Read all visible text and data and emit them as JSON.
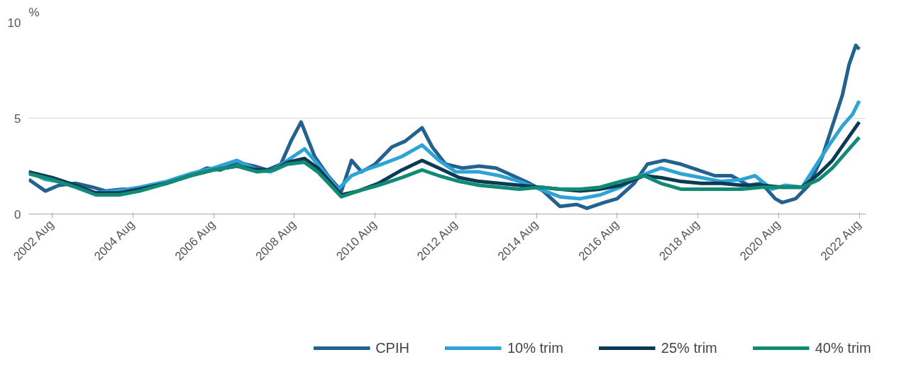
{
  "chart_data": {
    "type": "line",
    "ylabel": "%",
    "xlim": [
      "2002-01",
      "2022-10"
    ],
    "ylim": [
      0,
      10
    ],
    "yticks": [
      0,
      5,
      10
    ],
    "xticks": [
      {
        "value": "2002-08",
        "label": "2002 Aug"
      },
      {
        "value": "2004-08",
        "label": "2004 Aug"
      },
      {
        "value": "2006-08",
        "label": "2006 Aug"
      },
      {
        "value": "2008-08",
        "label": "2008 Aug"
      },
      {
        "value": "2010-08",
        "label": "2010 Aug"
      },
      {
        "value": "2012-08",
        "label": "2012 Aug"
      },
      {
        "value": "2014-08",
        "label": "2014 Aug"
      },
      {
        "value": "2016-08",
        "label": "2016 Aug"
      },
      {
        "value": "2018-08",
        "label": "2018 Aug"
      },
      {
        "value": "2020-08",
        "label": "2020 Aug"
      },
      {
        "value": "2022-08",
        "label": "2022 Aug"
      }
    ],
    "grid": "y",
    "legend": "bottom",
    "line_style": "solid",
    "marker": "none",
    "series": [
      {
        "name": "CPIH",
        "color": "#23628f",
        "x": [
          "2002-01",
          "2002-06",
          "2002-10",
          "2003-03",
          "2003-08",
          "2003-12",
          "2004-05",
          "2004-10",
          "2005-03",
          "2005-08",
          "2006-01",
          "2006-06",
          "2006-10",
          "2007-03",
          "2007-08",
          "2007-12",
          "2008-04",
          "2008-07",
          "2008-10",
          "2009-02",
          "2009-06",
          "2009-10",
          "2010-01",
          "2010-04",
          "2010-08",
          "2011-01",
          "2011-05",
          "2011-10",
          "2012-01",
          "2012-05",
          "2012-10",
          "2013-03",
          "2013-08",
          "2014-01",
          "2014-06",
          "2014-10",
          "2015-03",
          "2015-08",
          "2015-11",
          "2016-04",
          "2016-08",
          "2017-01",
          "2017-05",
          "2017-10",
          "2018-03",
          "2018-08",
          "2019-01",
          "2019-06",
          "2019-11",
          "2020-03",
          "2020-07",
          "2020-09",
          "2021-01",
          "2021-05",
          "2021-09",
          "2021-12",
          "2022-03",
          "2022-05",
          "2022-07",
          "2022-08"
        ],
        "values": [
          1.8,
          1.2,
          1.5,
          1.6,
          1.4,
          1.2,
          1.3,
          1.3,
          1.5,
          1.8,
          2.0,
          2.4,
          2.3,
          2.7,
          2.5,
          2.3,
          2.6,
          3.8,
          4.8,
          3.0,
          2.0,
          1.2,
          2.8,
          2.2,
          2.6,
          3.5,
          3.8,
          4.5,
          3.5,
          2.6,
          2.4,
          2.5,
          2.4,
          2.0,
          1.6,
          1.2,
          0.4,
          0.5,
          0.3,
          0.6,
          0.8,
          1.6,
          2.6,
          2.8,
          2.6,
          2.3,
          2.0,
          2.0,
          1.5,
          1.6,
          0.8,
          0.6,
          0.8,
          1.5,
          3.0,
          4.6,
          6.2,
          7.8,
          8.8,
          8.6
        ]
      },
      {
        "name": "10% trim",
        "color": "#2ea3d6",
        "x": [
          "2002-01",
          "2002-06",
          "2003-01",
          "2003-08",
          "2004-03",
          "2004-10",
          "2005-06",
          "2006-01",
          "2006-08",
          "2007-03",
          "2007-09",
          "2008-01",
          "2008-06",
          "2008-11",
          "2009-03",
          "2009-09",
          "2010-01",
          "2010-05",
          "2010-10",
          "2011-04",
          "2011-10",
          "2012-03",
          "2012-08",
          "2013-03",
          "2013-09",
          "2014-03",
          "2014-09",
          "2015-03",
          "2015-09",
          "2016-03",
          "2016-09",
          "2017-03",
          "2017-09",
          "2018-03",
          "2018-09",
          "2019-03",
          "2019-09",
          "2020-01",
          "2020-06",
          "2020-10",
          "2021-03",
          "2021-07",
          "2021-11",
          "2022-03",
          "2022-06",
          "2022-08"
        ],
        "values": [
          2.2,
          1.8,
          1.6,
          1.1,
          1.2,
          1.4,
          1.7,
          2.1,
          2.4,
          2.8,
          2.3,
          2.2,
          2.8,
          3.4,
          2.6,
          1.3,
          2.0,
          2.3,
          2.6,
          3.0,
          3.6,
          2.8,
          2.2,
          2.2,
          2.0,
          1.7,
          1.3,
          0.9,
          0.8,
          1.0,
          1.4,
          2.0,
          2.4,
          2.1,
          1.9,
          1.7,
          1.8,
          2.0,
          1.3,
          1.5,
          1.4,
          2.5,
          3.6,
          4.6,
          5.2,
          5.9
        ]
      },
      {
        "name": "25% trim",
        "color": "#0b3a55",
        "x": [
          "2002-01",
          "2002-08",
          "2003-03",
          "2003-09",
          "2004-04",
          "2004-10",
          "2005-06",
          "2006-01",
          "2006-08",
          "2007-03",
          "2007-09",
          "2008-02",
          "2008-06",
          "2008-11",
          "2009-03",
          "2009-10",
          "2010-03",
          "2010-09",
          "2011-04",
          "2011-10",
          "2012-03",
          "2012-09",
          "2013-03",
          "2013-09",
          "2014-03",
          "2014-09",
          "2015-03",
          "2015-09",
          "2016-03",
          "2016-09",
          "2017-04",
          "2017-09",
          "2018-03",
          "2018-09",
          "2019-03",
          "2019-09",
          "2020-03",
          "2020-09",
          "2021-03",
          "2021-08",
          "2021-12",
          "2022-04",
          "2022-08"
        ],
        "values": [
          2.2,
          1.9,
          1.5,
          1.1,
          1.1,
          1.3,
          1.6,
          2.0,
          2.3,
          2.5,
          2.3,
          2.3,
          2.7,
          2.9,
          2.4,
          1.0,
          1.2,
          1.6,
          2.3,
          2.8,
          2.4,
          1.9,
          1.7,
          1.6,
          1.5,
          1.4,
          1.3,
          1.2,
          1.3,
          1.5,
          2.0,
          1.9,
          1.7,
          1.6,
          1.6,
          1.5,
          1.5,
          1.4,
          1.4,
          2.1,
          2.8,
          3.8,
          4.8
        ]
      },
      {
        "name": "40% trim",
        "color": "#138a74",
        "x": [
          "2002-01",
          "2002-08",
          "2003-03",
          "2003-09",
          "2004-04",
          "2004-10",
          "2005-06",
          "2006-01",
          "2006-08",
          "2007-03",
          "2007-09",
          "2008-02",
          "2008-06",
          "2008-11",
          "2009-03",
          "2009-10",
          "2010-03",
          "2010-09",
          "2011-04",
          "2011-10",
          "2012-03",
          "2012-09",
          "2013-03",
          "2013-09",
          "2014-03",
          "2014-09",
          "2015-03",
          "2015-09",
          "2016-03",
          "2016-09",
          "2017-04",
          "2017-09",
          "2018-03",
          "2018-09",
          "2019-03",
          "2019-09",
          "2020-03",
          "2020-09",
          "2021-03",
          "2021-08",
          "2021-12",
          "2022-04",
          "2022-08"
        ],
        "values": [
          2.1,
          1.8,
          1.4,
          1.0,
          1.0,
          1.2,
          1.6,
          2.0,
          2.3,
          2.5,
          2.2,
          2.3,
          2.6,
          2.7,
          2.2,
          0.9,
          1.2,
          1.5,
          1.9,
          2.3,
          2.0,
          1.7,
          1.5,
          1.4,
          1.3,
          1.4,
          1.3,
          1.3,
          1.4,
          1.7,
          2.0,
          1.6,
          1.3,
          1.3,
          1.3,
          1.3,
          1.4,
          1.4,
          1.4,
          1.8,
          2.4,
          3.2,
          4.0
        ]
      }
    ]
  }
}
